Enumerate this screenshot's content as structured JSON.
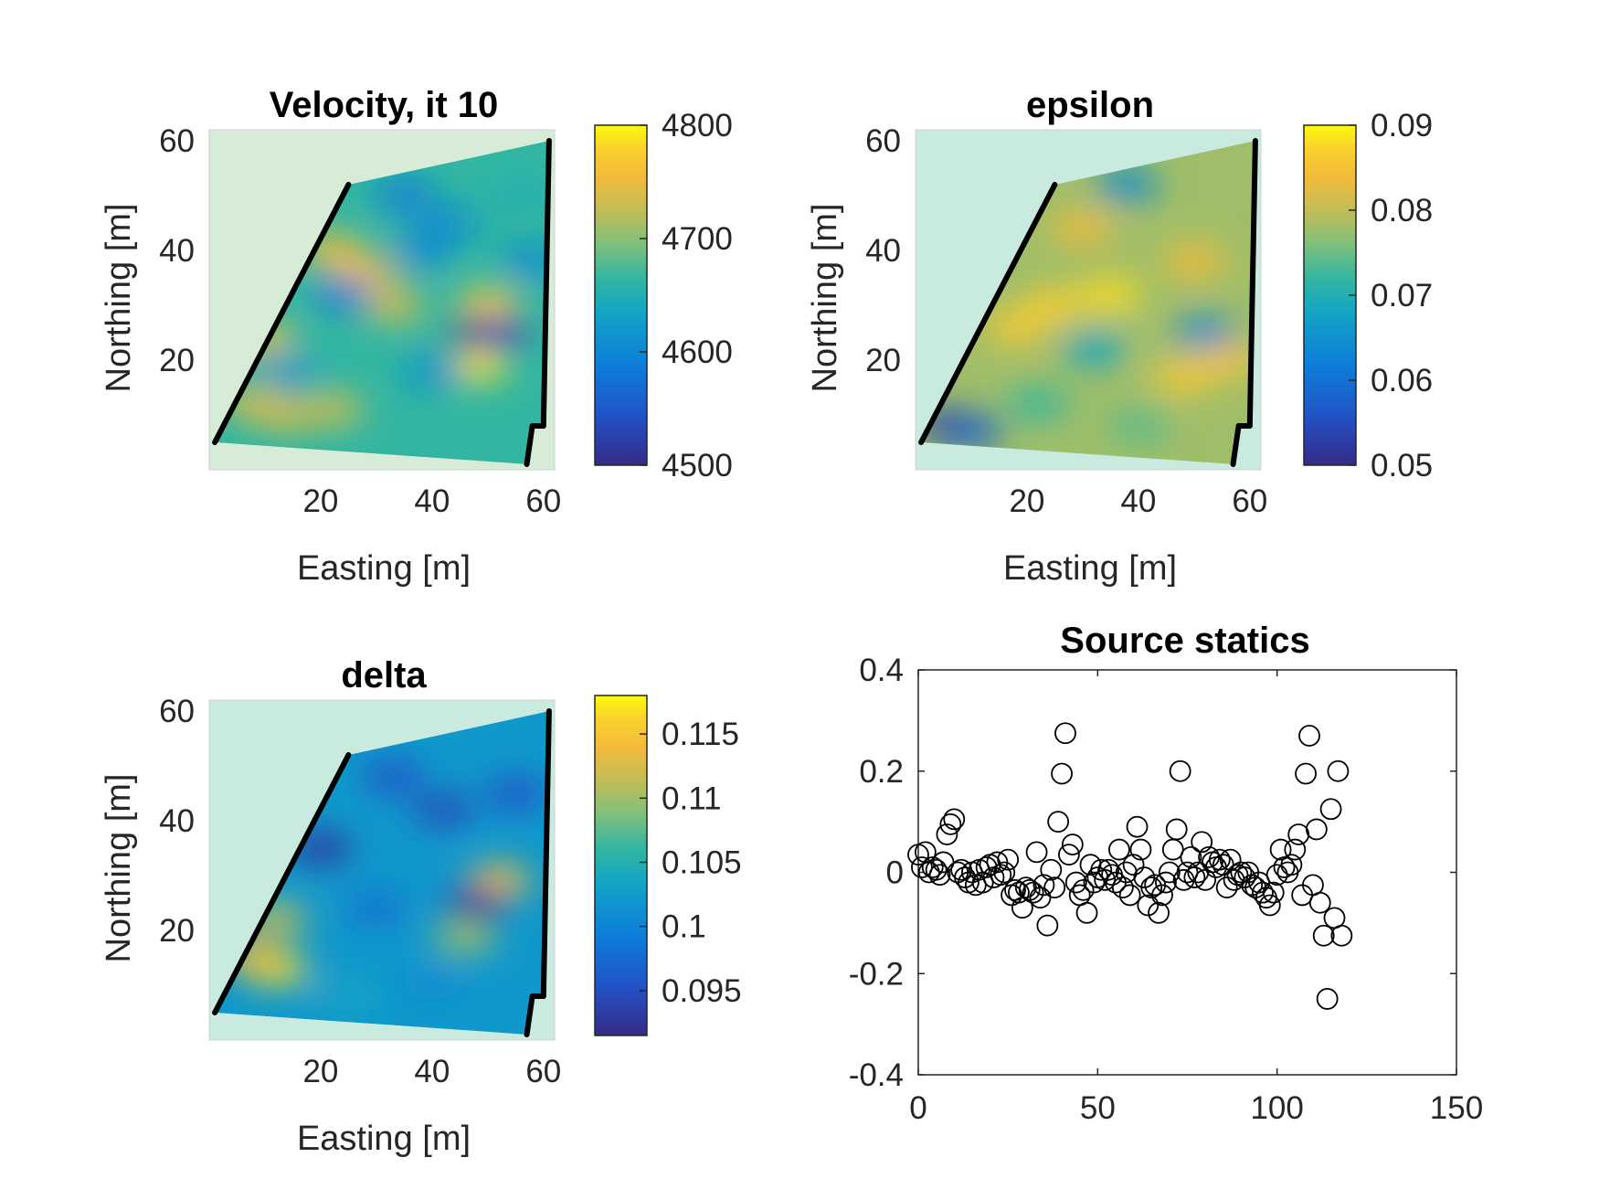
{
  "chart_data": [
    {
      "type": "heatmap",
      "title": "Velocity, it 10",
      "xlabel": "Easting [m]",
      "ylabel": "Northing [m]",
      "xticks": [
        "20",
        "40",
        "60"
      ],
      "yticks": [
        "20",
        "40",
        "60"
      ],
      "xlim": [
        0,
        62
      ],
      "ylim": [
        0,
        62
      ],
      "colorbar": {
        "ticks": [
          "4500",
          "4600",
          "4700",
          "4800"
        ],
        "range": [
          4500,
          4800
        ]
      },
      "colormap": "parula",
      "polygon": [
        [
          1,
          5
        ],
        [
          25,
          52
        ],
        [
          61,
          60
        ],
        [
          60,
          8
        ],
        [
          58,
          8
        ],
        [
          57,
          1
        ]
      ],
      "blobs": [
        {
          "x": 8,
          "y": 12,
          "v": 0.82
        },
        {
          "x": 14,
          "y": 10,
          "v": 0.8
        },
        {
          "x": 22,
          "y": 11,
          "v": 0.78
        },
        {
          "x": 10,
          "y": 24,
          "v": 0.8
        },
        {
          "x": 22,
          "y": 40,
          "v": 0.85
        },
        {
          "x": 28,
          "y": 36,
          "v": 0.85
        },
        {
          "x": 33,
          "y": 30,
          "v": 0.8
        },
        {
          "x": 48,
          "y": 19,
          "v": 0.95
        },
        {
          "x": 50,
          "y": 30,
          "v": 0.9
        },
        {
          "x": 49,
          "y": 25,
          "v": 0.02
        },
        {
          "x": 52,
          "y": 25,
          "v": 0.1
        },
        {
          "x": 24,
          "y": 32,
          "v": 0.3
        },
        {
          "x": 38,
          "y": 40,
          "v": 0.35
        },
        {
          "x": 43,
          "y": 45,
          "v": 0.35
        },
        {
          "x": 40,
          "y": 18,
          "v": 0.38
        },
        {
          "x": 58,
          "y": 38,
          "v": 0.35
        },
        {
          "x": 35,
          "y": 50,
          "v": 0.3
        },
        {
          "x": 14,
          "y": 18,
          "v": 0.4
        },
        {
          "x": 56,
          "y": 50,
          "v": 0.5
        }
      ],
      "base_value": 0.55
    },
    {
      "type": "heatmap",
      "title": "epsilon",
      "xlabel": "Easting [m]",
      "ylabel": "Northing [m]",
      "xticks": [
        "20",
        "40",
        "60"
      ],
      "yticks": [
        "20",
        "40",
        "60"
      ],
      "xlim": [
        0,
        62
      ],
      "ylim": [
        0,
        62
      ],
      "colorbar": {
        "ticks": [
          "0.05",
          "0.06",
          "0.07",
          "0.08",
          "0.09"
        ],
        "range": [
          0.05,
          0.09
        ]
      },
      "colormap": "parula",
      "polygon": [
        [
          1,
          5
        ],
        [
          25,
          52
        ],
        [
          61,
          60
        ],
        [
          60,
          8
        ],
        [
          58,
          8
        ],
        [
          57,
          1
        ]
      ],
      "blobs": [
        {
          "x": 6,
          "y": 8,
          "v": 0.05
        },
        {
          "x": 10,
          "y": 7,
          "v": 0.2
        },
        {
          "x": 18,
          "y": 26,
          "v": 0.9
        },
        {
          "x": 25,
          "y": 30,
          "v": 0.92
        },
        {
          "x": 35,
          "y": 32,
          "v": 0.95
        },
        {
          "x": 30,
          "y": 44,
          "v": 0.85
        },
        {
          "x": 50,
          "y": 38,
          "v": 0.85
        },
        {
          "x": 48,
          "y": 17,
          "v": 0.9
        },
        {
          "x": 56,
          "y": 20,
          "v": 0.88
        },
        {
          "x": 52,
          "y": 25,
          "v": 0.35
        },
        {
          "x": 32,
          "y": 22,
          "v": 0.45
        },
        {
          "x": 38,
          "y": 52,
          "v": 0.35
        },
        {
          "x": 22,
          "y": 12,
          "v": 0.55
        },
        {
          "x": 40,
          "y": 8,
          "v": 0.6
        }
      ],
      "base_value": 0.7
    },
    {
      "type": "heatmap",
      "title": "delta",
      "xlabel": "Easting [m]",
      "ylabel": "Northing [m]",
      "xticks": [
        "20",
        "40",
        "60"
      ],
      "yticks": [
        "20",
        "40",
        "60"
      ],
      "xlim": [
        0,
        62
      ],
      "ylim": [
        0,
        62
      ],
      "colorbar": {
        "ticks": [
          "0.095",
          "0.1",
          "0.105",
          "0.11",
          "0.115"
        ],
        "range": [
          0.0915,
          0.118
        ]
      },
      "colormap": "parula",
      "polygon": [
        [
          1,
          5
        ],
        [
          25,
          52
        ],
        [
          61,
          60
        ],
        [
          60,
          8
        ],
        [
          58,
          8
        ],
        [
          57,
          1
        ]
      ],
      "blobs": [
        {
          "x": 12,
          "y": 13,
          "v": 0.95
        },
        {
          "x": 8,
          "y": 15,
          "v": 0.85
        },
        {
          "x": 12,
          "y": 22,
          "v": 0.75
        },
        {
          "x": 52,
          "y": 29,
          "v": 0.85
        },
        {
          "x": 46,
          "y": 19,
          "v": 0.7
        },
        {
          "x": 20,
          "y": 35,
          "v": 0.05
        },
        {
          "x": 48,
          "y": 25,
          "v": 0.05
        },
        {
          "x": 33,
          "y": 48,
          "v": 0.15
        },
        {
          "x": 42,
          "y": 42,
          "v": 0.12
        },
        {
          "x": 55,
          "y": 45,
          "v": 0.15
        },
        {
          "x": 30,
          "y": 24,
          "v": 0.25
        },
        {
          "x": 40,
          "y": 10,
          "v": 0.35
        },
        {
          "x": 25,
          "y": 8,
          "v": 0.45
        }
      ],
      "base_value": 0.4
    },
    {
      "type": "scatter",
      "title": "Source statics",
      "xlabel": "",
      "ylabel": "",
      "xlim": [
        0,
        150
      ],
      "ylim": [
        -0.4,
        0.4
      ],
      "xticks": [
        "0",
        "50",
        "100",
        "150"
      ],
      "yticks": [
        "-0.4",
        "-0.2",
        "0",
        "0.2",
        "0.4"
      ],
      "marker": "open-circle",
      "points": [
        [
          0,
          0.035
        ],
        [
          1,
          0.01
        ],
        [
          2,
          0.04
        ],
        [
          3,
          0.0
        ],
        [
          4,
          0.01
        ],
        [
          5,
          0.005
        ],
        [
          6,
          -0.005
        ],
        [
          7,
          0.02
        ],
        [
          8,
          0.075
        ],
        [
          9,
          0.095
        ],
        [
          10,
          0.105
        ],
        [
          11,
          0.0
        ],
        [
          12,
          0.005
        ],
        [
          13,
          -0.01
        ],
        [
          14,
          -0.02
        ],
        [
          15,
          0.0
        ],
        [
          16,
          -0.025
        ],
        [
          17,
          0.005
        ],
        [
          18,
          -0.02
        ],
        [
          19,
          0.01
        ],
        [
          20,
          0.015
        ],
        [
          21,
          -0.01
        ],
        [
          22,
          0.02
        ],
        [
          23,
          -0.005
        ],
        [
          24,
          0.0
        ],
        [
          25,
          0.025
        ],
        [
          26,
          -0.045
        ],
        [
          27,
          -0.035
        ],
        [
          28,
          -0.04
        ],
        [
          29,
          -0.07
        ],
        [
          30,
          -0.03
        ],
        [
          31,
          -0.035
        ],
        [
          32,
          -0.04
        ],
        [
          33,
          0.04
        ],
        [
          34,
          -0.05
        ],
        [
          35,
          -0.025
        ],
        [
          36,
          -0.105
        ],
        [
          37,
          0.005
        ],
        [
          38,
          -0.03
        ],
        [
          39,
          0.1
        ],
        [
          40,
          0.195
        ],
        [
          41,
          0.275
        ],
        [
          42,
          0.035
        ],
        [
          43,
          0.055
        ],
        [
          44,
          -0.02
        ],
        [
          45,
          -0.045
        ],
        [
          46,
          -0.035
        ],
        [
          47,
          -0.08
        ],
        [
          48,
          0.015
        ],
        [
          49,
          -0.02
        ],
        [
          50,
          -0.01
        ],
        [
          51,
          0.005
        ],
        [
          52,
          -0.015
        ],
        [
          53,
          0.005
        ],
        [
          54,
          -0.005
        ],
        [
          55,
          -0.02
        ],
        [
          56,
          0.045
        ],
        [
          57,
          -0.03
        ],
        [
          58,
          0.0
        ],
        [
          59,
          -0.045
        ],
        [
          60,
          0.015
        ],
        [
          61,
          0.09
        ],
        [
          62,
          0.045
        ],
        [
          63,
          -0.01
        ],
        [
          64,
          -0.065
        ],
        [
          65,
          -0.03
        ],
        [
          66,
          -0.025
        ],
        [
          67,
          -0.08
        ],
        [
          68,
          -0.045
        ],
        [
          69,
          -0.02
        ],
        [
          70,
          0.0
        ],
        [
          71,
          0.045
        ],
        [
          72,
          0.085
        ],
        [
          73,
          0.2
        ],
        [
          74,
          -0.015
        ],
        [
          75,
          0.0
        ],
        [
          76,
          0.03
        ],
        [
          77,
          -0.01
        ],
        [
          78,
          0.0
        ],
        [
          79,
          0.06
        ],
        [
          80,
          -0.015
        ],
        [
          81,
          0.03
        ],
        [
          82,
          0.02
        ],
        [
          83,
          0.01
        ],
        [
          84,
          0.025
        ],
        [
          85,
          0.015
        ],
        [
          86,
          -0.03
        ],
        [
          87,
          0.025
        ],
        [
          88,
          -0.015
        ],
        [
          89,
          -0.005
        ],
        [
          90,
          0.0
        ],
        [
          91,
          -0.01
        ],
        [
          92,
          0.0
        ],
        [
          93,
          -0.025
        ],
        [
          94,
          -0.03
        ],
        [
          95,
          -0.02
        ],
        [
          96,
          -0.04
        ],
        [
          97,
          -0.05
        ],
        [
          98,
          -0.065
        ],
        [
          99,
          -0.04
        ],
        [
          100,
          -0.005
        ],
        [
          101,
          0.045
        ],
        [
          102,
          0.01
        ],
        [
          103,
          0.0
        ],
        [
          104,
          0.015
        ],
        [
          105,
          0.045
        ],
        [
          106,
          0.075
        ],
        [
          107,
          -0.045
        ],
        [
          108,
          0.195
        ],
        [
          109,
          0.27
        ],
        [
          110,
          -0.025
        ],
        [
          111,
          0.085
        ],
        [
          112,
          -0.06
        ],
        [
          113,
          -0.125
        ],
        [
          114,
          -0.25
        ],
        [
          115,
          0.125
        ],
        [
          116,
          -0.09
        ],
        [
          117,
          0.2
        ],
        [
          118,
          -0.125
        ]
      ]
    }
  ]
}
